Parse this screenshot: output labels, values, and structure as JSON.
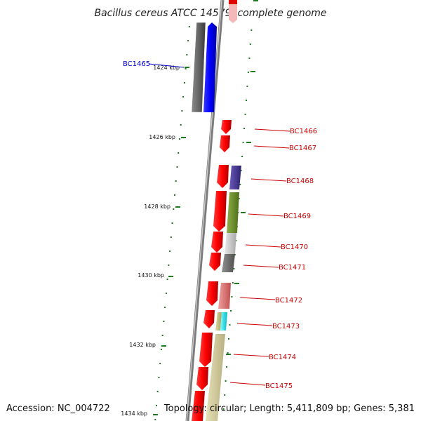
{
  "title": "Bacillus cereus ATCC 14579, complete genome",
  "footer": {
    "accession": "Accession: NC_004722",
    "topology": "Topology: circular; Length: 5,411,809 bp; Genes: 5,381"
  },
  "kbp_ticks": [
    "1424 kbp",
    "1426 kbp",
    "1428 kbp",
    "1430 kbp",
    "1432 kbp",
    "1434 kbp"
  ],
  "genes": [
    {
      "label": "BC1465",
      "color": "#0000cc"
    },
    {
      "label": "BC1466",
      "color": "#cc0000"
    },
    {
      "label": "BC1467",
      "color": "#cc0000"
    },
    {
      "label": "BC1468",
      "color": "#cc0000"
    },
    {
      "label": "BC1469",
      "color": "#cc0000"
    },
    {
      "label": "BC1470",
      "color": "#cc0000"
    },
    {
      "label": "BC1471",
      "color": "#cc0000"
    },
    {
      "label": "BC1472",
      "color": "#cc0000"
    },
    {
      "label": "BC1473",
      "color": "#cc0000"
    },
    {
      "label": "BC1474",
      "color": "#cc0000"
    },
    {
      "label": "BC1475",
      "color": "#cc0000"
    }
  ]
}
